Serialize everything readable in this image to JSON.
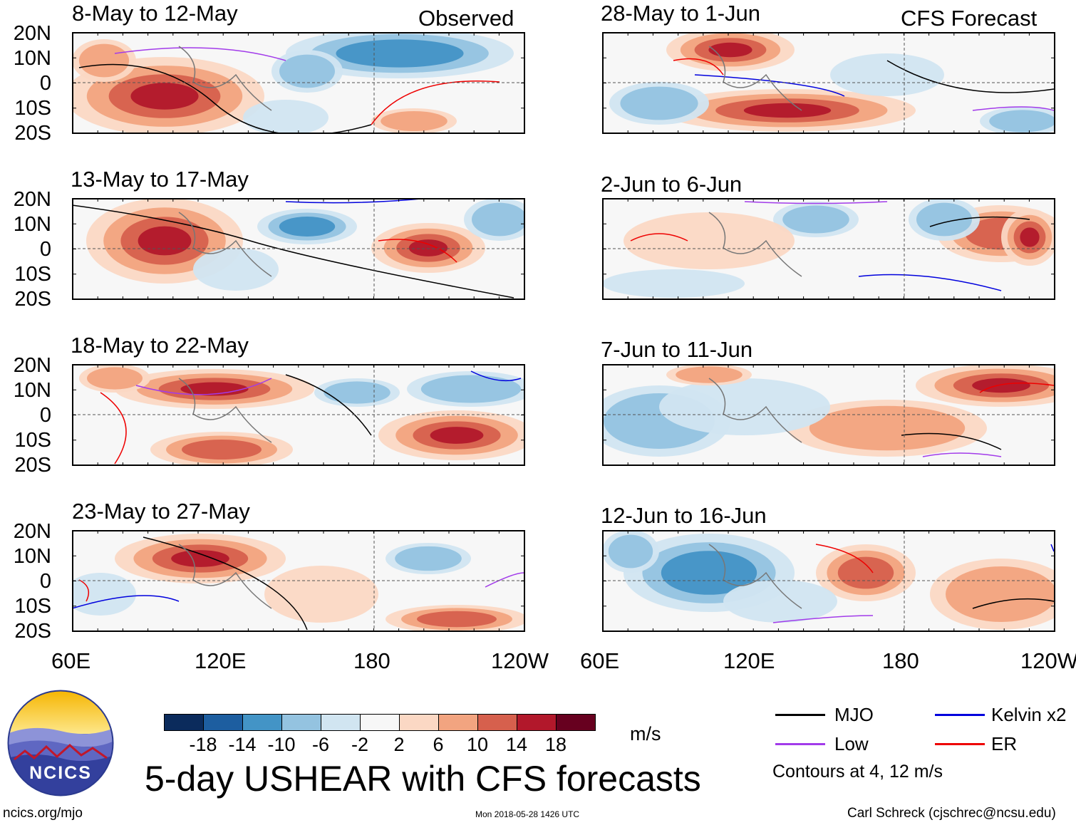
{
  "corner_labels": {
    "observed": "Observed",
    "forecast": "CFS Forecast"
  },
  "panels": [
    {
      "title": "8-May to 12-May",
      "column": "Observed"
    },
    {
      "title": "13-May to 17-May",
      "column": "Observed"
    },
    {
      "title": "18-May to 22-May",
      "column": "Observed"
    },
    {
      "title": "23-May to 27-May",
      "column": "Observed"
    },
    {
      "title": "28-May to 1-Jun",
      "column": "CFS Forecast"
    },
    {
      "title": "2-Jun to 6-Jun",
      "column": "CFS Forecast"
    },
    {
      "title": "7-Jun to 11-Jun",
      "column": "CFS Forecast"
    },
    {
      "title": "12-Jun to 16-Jun",
      "column": "CFS Forecast"
    }
  ],
  "lat_labels": [
    "20N",
    "10N",
    "0",
    "10S",
    "20S"
  ],
  "lon_labels": [
    "60E",
    "120E",
    "180",
    "120W"
  ],
  "colorbar": {
    "colors": [
      "#0b2b5c",
      "#1d5ea0",
      "#4394c6",
      "#94c3e0",
      "#d1e5f1",
      "#f7f7f7",
      "#fbd8c4",
      "#f2a480",
      "#d6604d",
      "#b2182b",
      "#67001f"
    ],
    "labels": [
      "-18",
      "-14",
      "-10",
      "-6",
      "-2",
      "2",
      "6",
      "10",
      "14",
      "18"
    ],
    "units": "m/s"
  },
  "legend": [
    {
      "label": "MJO",
      "color": "#000000"
    },
    {
      "label": "Kelvin x2",
      "color": "#0000dd"
    },
    {
      "label": "Low",
      "color": "#a23bea"
    },
    {
      "label": "ER",
      "color": "#ee0000"
    }
  ],
  "contour_note": "Contours at 4, 12 m/s",
  "main_title": "5-day USHEAR with CFS forecasts",
  "logo_text": "NCICS",
  "footer": {
    "url": "ncics.org/mjo",
    "timestamp": "Mon 2018-05-28 1426 UTC",
    "author": "Carl Schreck (cjschrec@ncsu.edu)"
  }
}
